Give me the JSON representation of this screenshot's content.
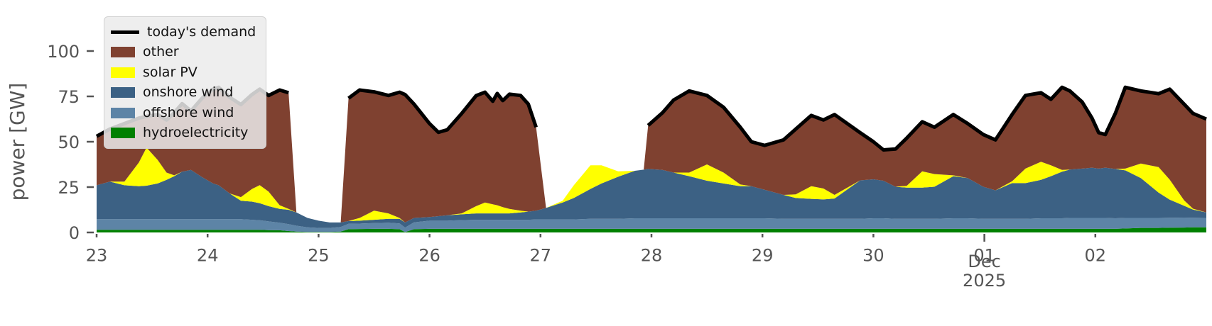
{
  "figure": {
    "background": "#ffffff",
    "text_color": "#555555"
  },
  "chart_data": {
    "type": "area",
    "title": "",
    "xlabel": "",
    "ylabel": "power [GW]",
    "x_unit": "days (0 = Nov 23 2025 00:00, 8 = Dec 01 2025)",
    "xlim": [
      0,
      10
    ],
    "ylim": [
      0,
      122
    ],
    "grid": false,
    "legend_position": "upper-left",
    "x_ticks": {
      "positions": [
        0,
        1,
        2,
        3,
        4,
        5,
        6,
        7,
        8,
        9
      ],
      "labels": [
        "23",
        "24",
        "25",
        "26",
        "27",
        "28",
        "29",
        "30",
        "01",
        "02"
      ],
      "major_index": 8,
      "month_label": "Dec",
      "year_label": "2025"
    },
    "y_ticks": {
      "positions": [
        0,
        25,
        50,
        75,
        100
      ],
      "labels": [
        "0",
        "25",
        "50",
        "75",
        "100"
      ]
    },
    "stack_order": [
      "hydroelectricity",
      "offshore_wind",
      "onshore_wind",
      "solar_pv",
      "other"
    ],
    "legend": [
      {
        "key": "demand",
        "label": "today's demand",
        "style": "line"
      },
      {
        "key": "other",
        "label": "other",
        "style": "patch"
      },
      {
        "key": "solar_pv",
        "label": "solar PV",
        "style": "patch"
      },
      {
        "key": "onshore_wind",
        "label": "onshore wind",
        "style": "patch"
      },
      {
        "key": "offshore_wind",
        "label": "offshore wind",
        "style": "patch"
      },
      {
        "key": "hydroelectricity",
        "label": "hydroelectricity",
        "style": "patch"
      }
    ],
    "t": [
      0,
      0.12,
      0.25,
      0.38,
      0.45,
      0.55,
      0.63,
      0.7,
      0.77,
      0.85,
      0.95,
      1.05,
      1.1,
      1.2,
      1.3,
      1.4,
      1.47,
      1.55,
      1.65,
      1.73,
      1.8,
      1.9,
      2,
      2.1,
      2.2,
      2.27,
      2.37,
      2.5,
      2.63,
      2.73,
      2.78,
      2.86,
      3,
      3.08,
      3.16,
      3.29,
      3.42,
      3.5,
      3.57,
      3.61,
      3.66,
      3.72,
      3.82,
      3.89,
      3.96,
      4.05,
      4.2,
      4.3,
      4.45,
      4.55,
      4.7,
      4.85,
      4.93,
      4.97,
      5.1,
      5.2,
      5.34,
      5.5,
      5.65,
      5.8,
      5.9,
      6.02,
      6.19,
      6.3,
      6.44,
      6.55,
      6.65,
      6.88,
      7,
      7.09,
      7.2,
      7.3,
      7.44,
      7.55,
      7.72,
      7.85,
      7.99,
      8.1,
      8.25,
      8.37,
      8.51,
      8.6,
      8.7,
      8.77,
      8.88,
      8.97,
      9.03,
      9.09,
      9.18,
      9.27,
      9.41,
      9.57,
      9.67,
      9.8,
      9.88,
      10
    ],
    "series": {
      "demand": {
        "label": "today's demand",
        "color": "#000000",
        "values": [
          53,
          57,
          60,
          63,
          64,
          65,
          62,
          66,
          71,
          67,
          74,
          79,
          80,
          74.5,
          70.5,
          76,
          79,
          75.5,
          78.5,
          77,
          null,
          null,
          null,
          null,
          null,
          74,
          78.5,
          77.5,
          75.5,
          77.3,
          76,
          70.8,
          60,
          55.2,
          56.6,
          65.6,
          75.4,
          77.3,
          72.3,
          76.6,
          72.7,
          76.2,
          75.5,
          70.8,
          58,
          null,
          null,
          null,
          null,
          null,
          null,
          null,
          null,
          59,
          66,
          73,
          78,
          75.5,
          69,
          58,
          50,
          48,
          51,
          57,
          64.5,
          62,
          65,
          55,
          50,
          45.5,
          46,
          52,
          61,
          58,
          65,
          60,
          54,
          51,
          65,
          75.5,
          77,
          73.4,
          80,
          78,
          72,
          63,
          55,
          54,
          65.6,
          80,
          78,
          76.5,
          79,
          70.7,
          65.6,
          62.5
        ]
      },
      "other": {
        "label": "other",
        "color": "#7f4130",
        "values": [
          27,
          29,
          32,
          24.5,
          17.2,
          25,
          29,
          34.5,
          37.5,
          32.5,
          43.5,
          52,
          54,
          53,
          51,
          52,
          52.9,
          53,
          63.5,
          64,
          0,
          0,
          0,
          0,
          0,
          67.7,
          70.5,
          65.5,
          65,
          69.3,
          70.5,
          62.8,
          51.5,
          46.2,
          47.1,
          55.1,
          60.9,
          60.8,
          56.8,
          61.6,
          58.7,
          63.2,
          63.5,
          59.3,
          46,
          0,
          0,
          0,
          0,
          0,
          0,
          0,
          0,
          24,
          31.5,
          40,
          45,
          38,
          36,
          31.5,
          24.5,
          24.5,
          30.3,
          36,
          39,
          37.8,
          44.3,
          26.3,
          20.7,
          17,
          20.8,
          26.3,
          27.3,
          25.8,
          33.5,
          30,
          28.8,
          27.8,
          36.8,
          40.3,
          38,
          36.4,
          45.5,
          43.3,
          36.8,
          27.3,
          19.8,
          18.3,
          30.6,
          44.8,
          40,
          40.5,
          49.9,
          53,
          52.5,
          51.5
        ]
      },
      "solar_pv": {
        "label": "solar PV",
        "color": "#ffff00",
        "values": [
          0,
          0,
          2,
          13,
          21,
          13,
          4,
          0.5,
          0,
          0,
          0,
          0,
          0,
          0,
          2,
          7,
          10,
          8,
          2,
          0.5,
          0,
          0,
          0,
          0,
          0,
          0,
          1.5,
          5,
          3,
          0.5,
          0,
          0,
          0,
          0,
          0,
          0.5,
          4,
          6,
          5,
          4.5,
          3.5,
          2.5,
          1,
          0,
          0,
          0,
          1,
          7,
          13,
          10,
          3,
          0,
          0,
          0,
          0,
          0,
          2,
          9,
          6,
          1,
          0,
          0,
          0,
          2,
          7,
          6,
          2,
          0,
          0,
          0,
          0,
          1,
          9,
          7,
          0.5,
          0,
          0,
          0,
          1,
          8,
          10,
          6,
          1,
          0,
          0,
          0,
          0,
          0,
          0,
          1,
          8,
          14,
          11,
          3,
          0.5,
          0
        ]
      },
      "onshore_wind": {
        "label": "onshore wind",
        "color": "#3c6184",
        "values": [
          18.7,
          20.7,
          18.7,
          18.2,
          18.5,
          19.7,
          21.7,
          23.7,
          26.2,
          27.2,
          23.2,
          19.7,
          18.7,
          14.2,
          10.2,
          10,
          9.4,
          8.4,
          7.6,
          7.9,
          7.3,
          5.2,
          4,
          3,
          2.5,
          1.5,
          1.6,
          1.8,
          2.1,
          2.5,
          2.8,
          2.4,
          2,
          2.5,
          3,
          3.2,
          3.5,
          3.5,
          3.5,
          3.5,
          3.5,
          3.5,
          4,
          4.5,
          4.8,
          6.3,
          9.3,
          11.8,
          16.5,
          19.5,
          23.2,
          26.2,
          26.8,
          27.2,
          26.7,
          25.2,
          23.2,
          20.7,
          19.2,
          17.7,
          17.7,
          15.7,
          13.2,
          11.5,
          11,
          10.7,
          11.2,
          21.2,
          21.5,
          20.7,
          17.7,
          17.2,
          17.2,
          17.7,
          23.2,
          22.2,
          17.7,
          15.7,
          19.7,
          19.7,
          21.2,
          23.2,
          25.7,
          26.7,
          27.2,
          27.7,
          27.2,
          27.7,
          27.2,
          26.2,
          22,
          14,
          10,
          6.5,
          4.5,
          3
        ]
      },
      "offshore_wind": {
        "label": "offshore wind",
        "color": "#5d84a6",
        "values": [
          5.8,
          5.8,
          5.8,
          5.8,
          5.8,
          5.8,
          5.8,
          5.8,
          5.8,
          5.8,
          5.8,
          5.8,
          5.8,
          5.8,
          5.8,
          5.5,
          5.2,
          4.8,
          4.2,
          3.8,
          3.2,
          2.5,
          2.2,
          2.2,
          2.5,
          3,
          3,
          3.2,
          3.4,
          3.2,
          2.5,
          3.8,
          4.5,
          4.5,
          4.5,
          4.8,
          5,
          5,
          5,
          5,
          5,
          5,
          5,
          5,
          5.2,
          5.2,
          5.2,
          5.2,
          5.5,
          5.5,
          5.5,
          5.8,
          5.8,
          5.8,
          5.8,
          5.8,
          5.8,
          5.8,
          5.8,
          5.8,
          5.8,
          5.8,
          5.5,
          5.5,
          5.5,
          5.5,
          5.5,
          5.5,
          5.8,
          5.8,
          5.5,
          5.5,
          5.5,
          5.5,
          5.8,
          5.8,
          5.5,
          5.5,
          5.5,
          5.5,
          5.8,
          5.8,
          5.8,
          6,
          6,
          6,
          6,
          6,
          5.8,
          5.8,
          5.5,
          5.5,
          5.5,
          5.5,
          5.3,
          5.2
        ]
      },
      "hydroelectricity": {
        "label": "hydroelectricity",
        "color": "#008000",
        "values": [
          1.5,
          1.5,
          1.5,
          1.5,
          1.5,
          1.5,
          1.5,
          1.5,
          1.5,
          1.5,
          1.5,
          1.5,
          1.5,
          1.5,
          1.5,
          1.5,
          1.5,
          1.3,
          1.2,
          0.8,
          0.5,
          0.3,
          0.3,
          0.3,
          0.5,
          1.8,
          1.9,
          2,
          2,
          1.8,
          0.2,
          1.8,
          2,
          2,
          2,
          2,
          2,
          2,
          2,
          2,
          2,
          2,
          2,
          2,
          2,
          2,
          2,
          2,
          2,
          2,
          2,
          2,
          2,
          2,
          2,
          2,
          2,
          2,
          2,
          2,
          2,
          2,
          2,
          2,
          2,
          2,
          2,
          2,
          2,
          2,
          2,
          2,
          2,
          2,
          2,
          2,
          2,
          2,
          2,
          2,
          2,
          2,
          2,
          2,
          2,
          2,
          2,
          2,
          2,
          2.2,
          2.5,
          2.5,
          2.6,
          2.7,
          2.8,
          2.8
        ]
      }
    }
  }
}
